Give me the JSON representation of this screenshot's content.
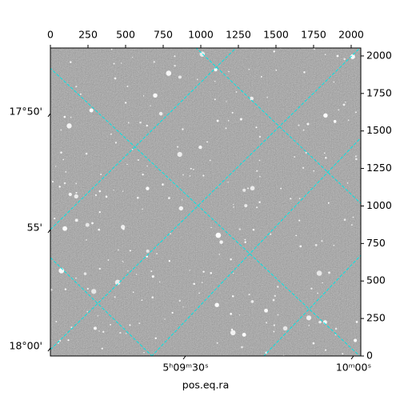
{
  "chart_data": {
    "type": "image",
    "xlabel": "pos.eq.ra",
    "xlim": [
      0,
      2064
    ],
    "ylim": [
      0,
      2053
    ],
    "xticks": [
      0,
      250,
      500,
      750,
      1000,
      1250,
      1500,
      1750,
      2000
    ],
    "yticks": [
      0,
      250,
      500,
      750,
      1000,
      1250,
      1500,
      1750,
      2000
    ],
    "ra_ticks": [
      {
        "value": 899,
        "label": "5ʰ09ᵐ30ˢ"
      },
      {
        "value": 2016,
        "label": "10ᵐ00ˢ"
      }
    ],
    "dec_ticks": [
      {
        "value": 1616,
        "label": "17°50'"
      },
      {
        "value": 843,
        "label": "55'"
      },
      {
        "value": 53,
        "label": "18°00'"
      }
    ],
    "grid": true,
    "grid_color": "#00e5e5"
  }
}
